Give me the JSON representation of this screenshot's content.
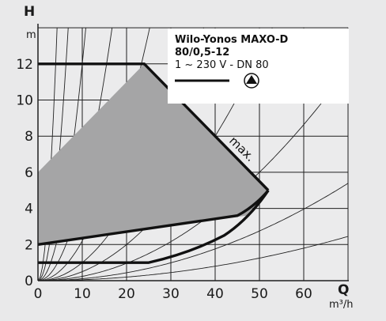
{
  "chart_data": {
    "type": "area",
    "title": "Wilo-Yonos MAXO-D",
    "title_line2": "80/0,5-12",
    "subtitle": "1 ~ 230 V - DN 80",
    "xlabel": "Q",
    "xunit": "m³/h",
    "ylabel": "H",
    "yunit": "m",
    "xlim": [
      0,
      70
    ],
    "ylim": [
      0,
      14
    ],
    "x_ticks": [
      "0",
      "10",
      "20",
      "30",
      "40",
      "50",
      "60"
    ],
    "y_ticks": [
      "0",
      "2",
      "4",
      "6",
      "8",
      "10",
      "12"
    ],
    "grid": true,
    "curve_annotation": "max.",
    "operating_area": [
      [
        0,
        6
      ],
      [
        24,
        12
      ],
      [
        52,
        5
      ],
      [
        47,
        3.6
      ],
      [
        0,
        2
      ]
    ],
    "series": [
      {
        "name": "max.",
        "x": [
          0,
          24,
          52
        ],
        "y": [
          12,
          12,
          5
        ]
      },
      {
        "x": [
          0,
          45,
          52
        ],
        "y": [
          2,
          3.6,
          5
        ]
      },
      {
        "x": [
          0,
          25,
          42,
          52
        ],
        "y": [
          1,
          1,
          2.5,
          5
        ]
      }
    ],
    "system_curve_k": [
      0.75,
      0.3,
      0.12,
      0.05,
      0.022,
      0.01,
      0.005,
      0.0024,
      0.0011,
      0.0005
    ],
    "colors": {
      "fill": "#a5a5a6",
      "line": "#111111",
      "grid": "#1f1f1f",
      "background": "#e9e9ea",
      "legend_box": "#ffffff"
    },
    "legend_icon": "pump-triangle-icon"
  }
}
